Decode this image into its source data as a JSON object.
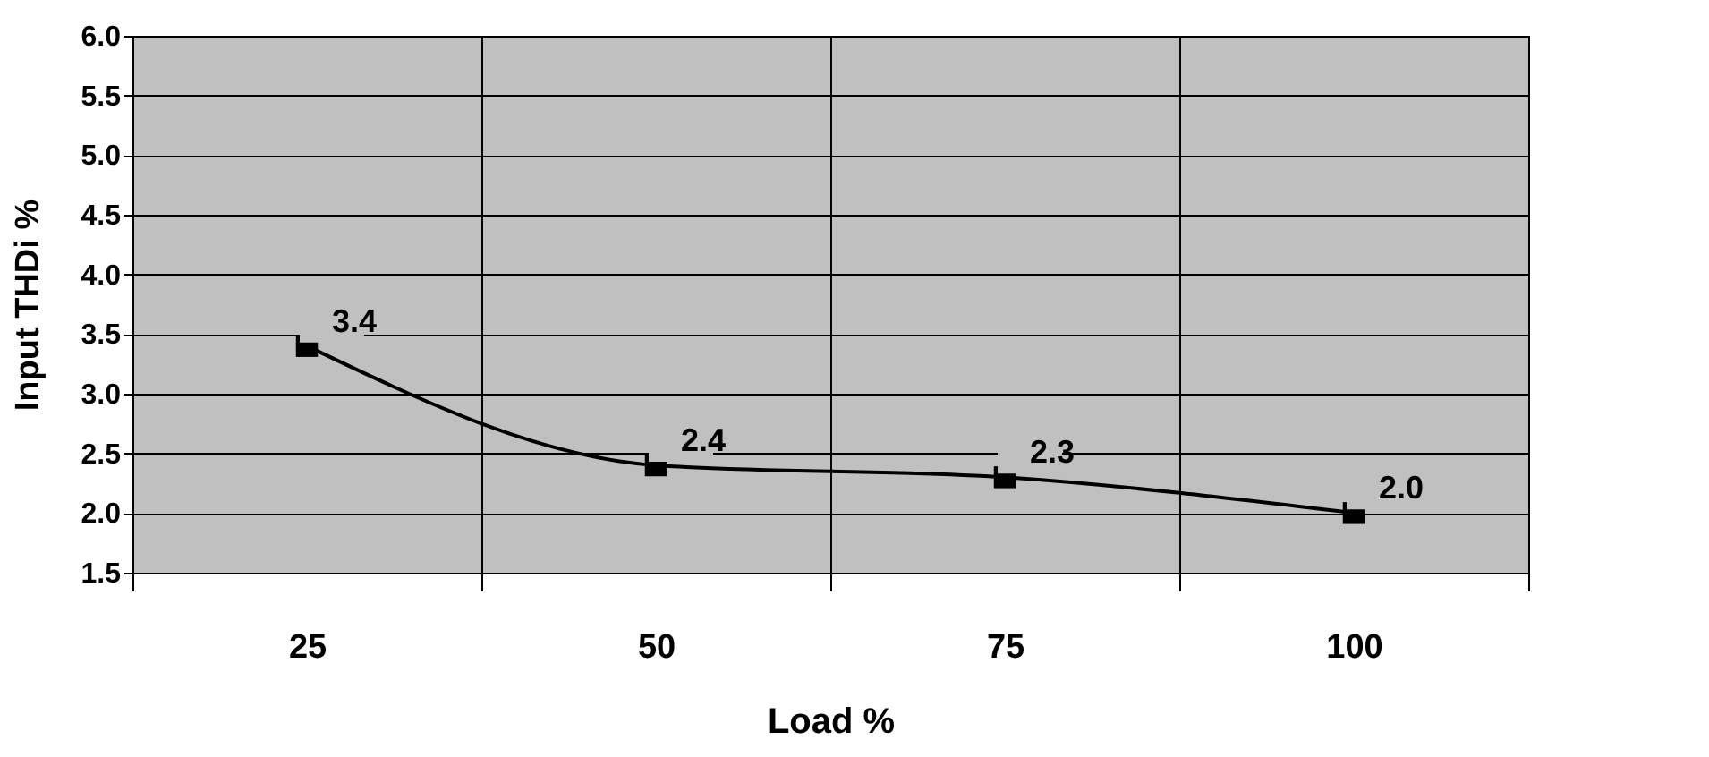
{
  "chart_data": {
    "type": "line",
    "xlabel": "Load   %",
    "ylabel": "Input THDi    %",
    "categories": [
      "25",
      "50",
      "75",
      "100"
    ],
    "series": [
      {
        "color": "#000000",
        "values": [
          3.4,
          2.4,
          2.3,
          2.0
        ],
        "value_labels": [
          "3.4",
          "2.4",
          "2.3",
          "2.0"
        ]
      }
    ],
    "ylim": [
      1.5,
      6.0
    ],
    "yticks": [
      1.5,
      {
        "value": 2,
        "label": "2.0"
      },
      2.5,
      {
        "value": 3,
        "label": "3.0"
      },
      3.5,
      {
        "value": 4,
        "label": "4.0"
      },
      4.5,
      {
        "value": 5,
        "label": "5.0"
      },
      5.5,
      {
        "value": 6,
        "label": "6.0"
      }
    ],
    "grid": true,
    "marker": "square",
    "line_style": "solid"
  }
}
